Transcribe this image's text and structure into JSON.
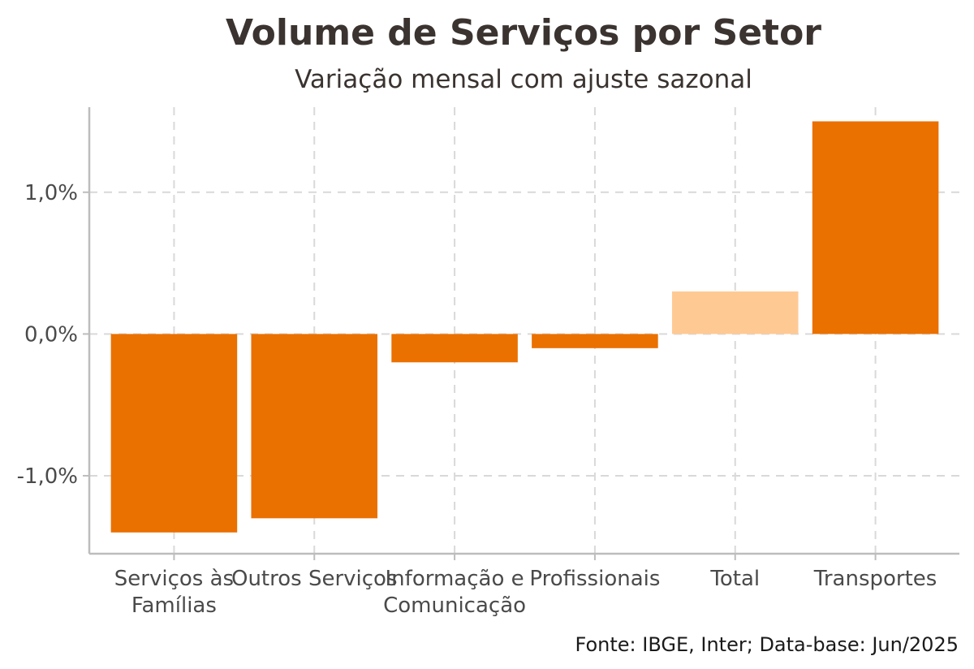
{
  "chart_data": {
    "type": "bar",
    "title": "Volume de Serviços por Setor",
    "subtitle": "Variação mensal com ajuste sazonal",
    "caption": "Fonte: IBGE, Inter; Data-base: Jun/2025",
    "xlabel": "",
    "ylabel": "",
    "categories": [
      [
        "Serviços às",
        "Famílias"
      ],
      [
        "Outros Serviços"
      ],
      [
        "Informação e",
        "Comunicação"
      ],
      [
        "Profissionais"
      ],
      [
        "Total"
      ],
      [
        "Transportes"
      ]
    ],
    "values": [
      -1.4,
      -1.3,
      -0.2,
      -0.1,
      0.3,
      1.5
    ],
    "bar_colors": [
      "#EA7000",
      "#EA7000",
      "#EA7000",
      "#EA7000",
      "#FFC994",
      "#EA7000"
    ],
    "ylim": [
      -1.55,
      1.6
    ],
    "y_ticks": [
      -1.0,
      0.0,
      1.0
    ],
    "y_tick_labels": [
      "-1,0%",
      "0,0%",
      "1,0%"
    ],
    "grid": true,
    "legend": "none"
  }
}
